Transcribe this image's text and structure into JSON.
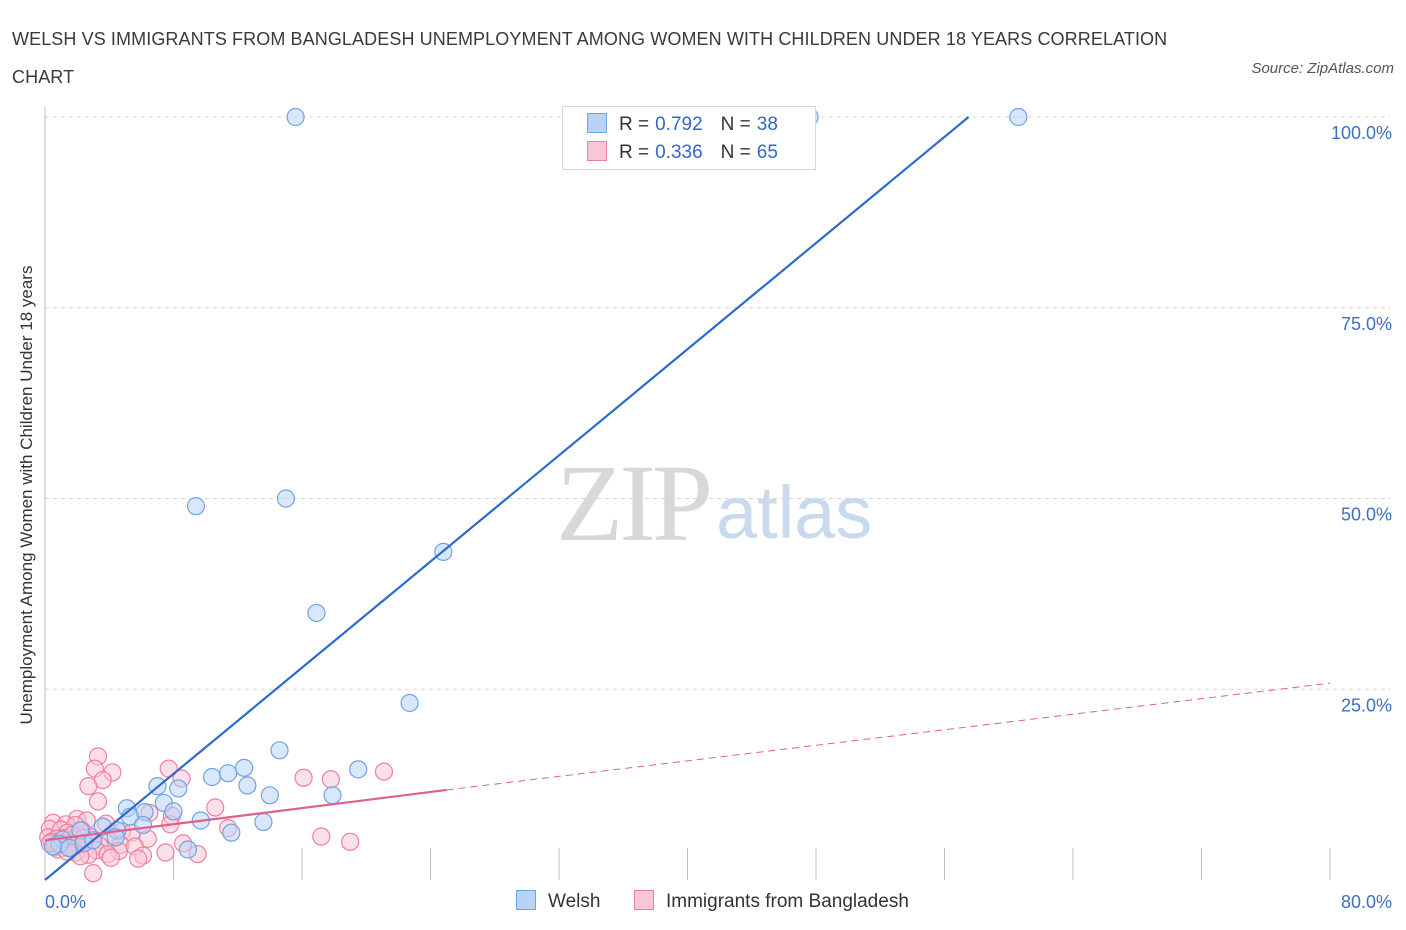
{
  "title": "WELSH VS IMMIGRANTS FROM BANGLADESH UNEMPLOYMENT AMONG WOMEN WITH CHILDREN UNDER 18 YEARS CORRELATION CHART",
  "source": "Source: ZipAtlas.com",
  "watermark": {
    "zip": "ZIP",
    "atlas": "atlas"
  },
  "colors": {
    "welsh": "#6fa3e6",
    "welsh_fill": "#b9d3f6",
    "bangladesh": "#ee7fa3",
    "bangladesh_fill": "#f8c6d6",
    "welsh_line": "#2a6ccc",
    "bangladesh_line": "#e0608c",
    "axis_label": "#3c6fc4",
    "grid": "#d6d6d6"
  },
  "legend": {
    "rows": [
      {
        "r_label": "R =",
        "r_value": "0.792",
        "n_label": "N =",
        "n_value": "38"
      },
      {
        "r_label": "R =",
        "r_value": "0.336",
        "n_label": "N =",
        "n_value": "65"
      }
    ]
  },
  "bottom_legend": {
    "welsh": "Welsh",
    "bangladesh": "Immigrants from Bangladesh"
  },
  "chart_data": {
    "type": "scatter",
    "title": "WELSH VS IMMIGRANTS FROM BANGLADESH UNEMPLOYMENT AMONG WOMEN WITH CHILDREN UNDER 18 YEARS CORRELATION CHART",
    "xlabel": "",
    "ylabel": "Unemployment Among Women with Children Under 18 years",
    "xlim": [
      0,
      80
    ],
    "ylim": [
      0,
      100
    ],
    "x_tick_labels": [
      "0.0%",
      "80.0%"
    ],
    "y_tick_labels": [
      "100.0%",
      "75.0%",
      "50.0%",
      "25.0%"
    ],
    "y_ticks": [
      100,
      75,
      50,
      25
    ],
    "grid": true,
    "legend_placement": "top-center",
    "series": [
      {
        "name": "Welsh",
        "R": 0.792,
        "N": 38,
        "trend": {
          "x": [
            0,
            57.5
          ],
          "y": [
            0,
            100
          ]
        },
        "points": [
          [
            15.6,
            100
          ],
          [
            47.6,
            100
          ],
          [
            60.6,
            100
          ],
          [
            9.4,
            49
          ],
          [
            15,
            50
          ],
          [
            24.8,
            43
          ],
          [
            16.9,
            35
          ],
          [
            22.7,
            23.2
          ],
          [
            14.6,
            17
          ],
          [
            19.5,
            14.5
          ],
          [
            12.4,
            14.7
          ],
          [
            10.4,
            13.5
          ],
          [
            11.4,
            14
          ],
          [
            7,
            12.3
          ],
          [
            8.3,
            12
          ],
          [
            12.6,
            12.4
          ],
          [
            17.9,
            11.1
          ],
          [
            14,
            11.1
          ],
          [
            7.4,
            10.1
          ],
          [
            5.1,
            9.4
          ],
          [
            6.2,
            8.9
          ],
          [
            8,
            9
          ],
          [
            5.3,
            8.3
          ],
          [
            9.7,
            7.8
          ],
          [
            13.6,
            7.6
          ],
          [
            6.1,
            7.2
          ],
          [
            3.6,
            7
          ],
          [
            11.6,
            6.2
          ],
          [
            4.5,
            6.5
          ],
          [
            2.2,
            6.5
          ],
          [
            1.1,
            5.3
          ],
          [
            0.9,
            4.7
          ],
          [
            1.5,
            4.2
          ],
          [
            2.4,
            4.8
          ],
          [
            4.4,
            5.6
          ],
          [
            3,
            5.2
          ],
          [
            0.5,
            4.4
          ],
          [
            8.9,
            4
          ]
        ]
      },
      {
        "name": "Immigrants from Bangladesh",
        "R": 0.336,
        "N": 65,
        "trend": {
          "x": [
            0,
            25
          ],
          "y": [
            5.2,
            11.8
          ]
        },
        "trend_extension": {
          "x": [
            25,
            80
          ],
          "y": [
            11.8,
            25.8
          ]
        },
        "points": [
          [
            3.3,
            16.2
          ],
          [
            3.1,
            14.6
          ],
          [
            4.2,
            14.1
          ],
          [
            3.6,
            13.1
          ],
          [
            7.7,
            14.6
          ],
          [
            8.5,
            13.3
          ],
          [
            16.1,
            13.4
          ],
          [
            17.8,
            13.2
          ],
          [
            21.1,
            14.2
          ],
          [
            2.7,
            12.3
          ],
          [
            3.3,
            10.3
          ],
          [
            10.6,
            9.5
          ],
          [
            6.5,
            8.8
          ],
          [
            7.9,
            8.4
          ],
          [
            2,
            8
          ],
          [
            2.6,
            7.8
          ],
          [
            0.5,
            7.5
          ],
          [
            1.3,
            7.3
          ],
          [
            1.9,
            7.2
          ],
          [
            3.8,
            7.4
          ],
          [
            7.8,
            7.3
          ],
          [
            11.4,
            6.8
          ],
          [
            0.3,
            6.7
          ],
          [
            1,
            6.6
          ],
          [
            1.4,
            6.2
          ],
          [
            2.3,
            6.5
          ],
          [
            4.8,
            6.4
          ],
          [
            5.4,
            6.2
          ],
          [
            17.2,
            5.7
          ],
          [
            0.2,
            5.6
          ],
          [
            0.7,
            5.4
          ],
          [
            1.2,
            5.5
          ],
          [
            1.8,
            5.3
          ],
          [
            2.9,
            5.6
          ],
          [
            4,
            5.1
          ],
          [
            6.4,
            5.4
          ],
          [
            0.4,
            5
          ],
          [
            0.9,
            4.9
          ],
          [
            1.6,
            4.7
          ],
          [
            2.1,
            4.6
          ],
          [
            3.4,
            4.5
          ],
          [
            4.7,
            4.6
          ],
          [
            0.6,
            4.3
          ],
          [
            1.1,
            4.2
          ],
          [
            2.5,
            4.1
          ],
          [
            3.2,
            3.9
          ],
          [
            4.6,
            3.8
          ],
          [
            5.6,
            4.4
          ],
          [
            1.9,
            3.6
          ],
          [
            0.8,
            4
          ],
          [
            2.7,
            3.3
          ],
          [
            3.9,
            3.4
          ],
          [
            6.1,
            3.2
          ],
          [
            7.5,
            3.6
          ],
          [
            9.5,
            3.4
          ],
          [
            4.1,
            2.9
          ],
          [
            5.8,
            2.8
          ],
          [
            2.2,
            3.1
          ],
          [
            19,
            5
          ],
          [
            8.6,
            4.8
          ],
          [
            1.4,
            3.7
          ],
          [
            3,
            0.9
          ],
          [
            0.3,
            4.8
          ],
          [
            1.7,
            5.9
          ],
          [
            2.4,
            5.5
          ]
        ]
      }
    ]
  }
}
